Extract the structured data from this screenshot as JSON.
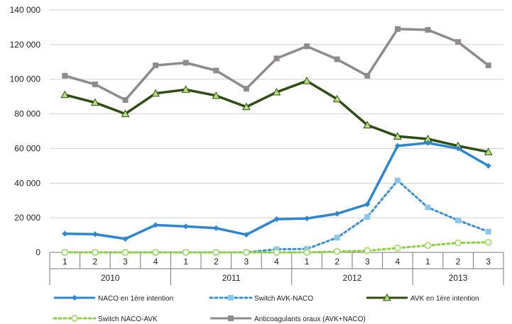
{
  "chart_data": {
    "type": "line",
    "title": "",
    "xlabel": "",
    "ylabel": "",
    "ylim": [
      0,
      140000
    ],
    "yticks": [
      "0",
      "20 000",
      "40 000",
      "60 000",
      "80 000",
      "100 000",
      "120 000",
      "140 000"
    ],
    "grid": "horizontal",
    "legend_position": "bottom",
    "categories": [
      "1",
      "2",
      "3",
      "4",
      "1",
      "2",
      "3",
      "4",
      "1",
      "2",
      "3",
      "4",
      "1",
      "2",
      "3"
    ],
    "years": [
      {
        "label": "2010",
        "quarters": 4
      },
      {
        "label": "2011",
        "quarters": 4
      },
      {
        "label": "2012",
        "quarters": 4
      },
      {
        "label": "2013",
        "quarters": 3
      }
    ],
    "series": [
      {
        "name": "NACO en 1ère intention",
        "color": "#2e86d0",
        "style": "solid",
        "marker": "diamond",
        "values": [
          10800,
          10500,
          7800,
          15800,
          15000,
          14000,
          10200,
          19200,
          19600,
          22300,
          27800,
          61500,
          63200,
          60000,
          50000
        ]
      },
      {
        "name": "Switch AVK-NACO",
        "color": "#3a8fd6",
        "style": "dotted",
        "marker": "square-light",
        "values": [
          0,
          0,
          0,
          0,
          0,
          0,
          0,
          1800,
          2000,
          8500,
          20500,
          41500,
          26000,
          18500,
          12000
        ]
      },
      {
        "name": "AVK en 1ère intention",
        "color": "#2d4d12",
        "style": "solid",
        "marker": "triangle",
        "values": [
          91000,
          86500,
          80000,
          91800,
          94000,
          90500,
          84000,
          92500,
          99000,
          88500,
          73500,
          67000,
          65500,
          61500,
          58000
        ]
      },
      {
        "name": "Switch NACO-AVK",
        "color": "#88d23c",
        "style": "dotted",
        "marker": "circle-open",
        "values": [
          0,
          0,
          0,
          0,
          0,
          0,
          0,
          0,
          0,
          500,
          1000,
          2500,
          4000,
          5500,
          5800
        ]
      },
      {
        "name": "Anticoagulants oraux (AVK+NACO)",
        "color": "#8f8a8c",
        "style": "solid",
        "marker": "square",
        "values": [
          102000,
          97000,
          88000,
          108000,
          109500,
          105000,
          94500,
          112000,
          119000,
          111500,
          102000,
          129000,
          128500,
          121500,
          108000
        ]
      }
    ]
  }
}
